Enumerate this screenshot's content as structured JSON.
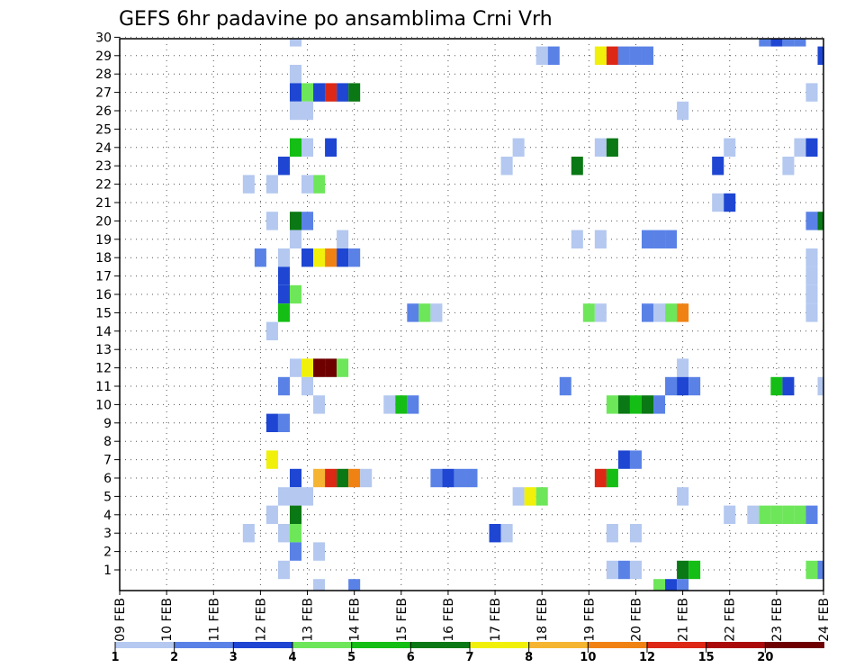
{
  "chart_data": {
    "type": "heatmap",
    "title": "GEFS 6hr padavine po ansamblima Crni Vrh",
    "xlabel": "",
    "ylabel": "",
    "x_tick_labels": [
      "09 FEB",
      "10 FEB",
      "11 FEB",
      "12 FEB",
      "13 FEB",
      "14 FEB",
      "15 FEB",
      "16 FEB",
      "17 FEB",
      "18 FEB",
      "19 FEB",
      "20 FEB",
      "21 FEB",
      "22 FEB",
      "23 FEB",
      "24 FEB"
    ],
    "y_tick_labels": [
      "1",
      "2",
      "3",
      "4",
      "5",
      "6",
      "7",
      "8",
      "9",
      "10",
      "11",
      "12",
      "13",
      "14",
      "15",
      "16",
      "17",
      "18",
      "19",
      "20",
      "21",
      "22",
      "23",
      "24",
      "25",
      "26",
      "27",
      "28",
      "29",
      "30"
    ],
    "xlim_days": [
      0,
      15
    ],
    "ylim_members": [
      0,
      30
    ],
    "grid": true,
    "colorbar": {
      "labels": [
        "1",
        "2",
        "3",
        "4",
        "5",
        "6",
        "7",
        "8",
        "10",
        "12",
        "15",
        "20"
      ],
      "colors": [
        "#b4c8f0",
        "#5a82e6",
        "#1e46d2",
        "#6ee65a",
        "#14be14",
        "#0a7814",
        "#f0f00a",
        "#f5b432",
        "#f08214",
        "#dc2814",
        "#aa0a0a",
        "#6e0000"
      ]
    },
    "cells": [
      [
        3.75,
        30,
        1
      ],
      [
        13.75,
        30,
        2
      ],
      [
        14,
        30,
        3
      ],
      [
        14.25,
        30,
        2
      ],
      [
        14.5,
        30,
        2
      ],
      [
        9.0,
        29,
        1
      ],
      [
        9.25,
        29,
        2
      ],
      [
        10.25,
        29,
        7
      ],
      [
        10.5,
        29,
        10
      ],
      [
        10.75,
        29,
        2
      ],
      [
        11.0,
        29,
        2
      ],
      [
        11.25,
        29,
        2
      ],
      [
        15.0,
        29,
        3
      ],
      [
        3.75,
        28,
        1
      ],
      [
        3.75,
        27,
        3
      ],
      [
        4.0,
        27,
        4
      ],
      [
        4.25,
        27,
        3
      ],
      [
        4.5,
        27,
        10
      ],
      [
        4.75,
        27,
        3
      ],
      [
        5.0,
        27,
        6
      ],
      [
        14.75,
        27,
        1
      ],
      [
        3.75,
        26,
        1
      ],
      [
        4.0,
        26,
        1
      ],
      [
        12.0,
        26,
        1
      ],
      [
        3.75,
        24,
        5
      ],
      [
        4.0,
        24,
        1
      ],
      [
        4.5,
        24,
        3
      ],
      [
        8.5,
        24,
        1
      ],
      [
        10.25,
        24,
        1
      ],
      [
        10.5,
        24,
        6
      ],
      [
        13.0,
        24,
        1
      ],
      [
        14.5,
        24,
        1
      ],
      [
        14.75,
        24,
        3
      ],
      [
        3.5,
        23,
        3
      ],
      [
        8.25,
        23,
        1
      ],
      [
        9.75,
        23,
        6
      ],
      [
        12.75,
        23,
        3
      ],
      [
        14.25,
        23,
        1
      ],
      [
        2.75,
        22,
        1
      ],
      [
        3.25,
        22,
        1
      ],
      [
        4.0,
        22,
        1
      ],
      [
        4.25,
        22,
        4
      ],
      [
        12.75,
        21,
        1
      ],
      [
        13.0,
        21,
        3
      ],
      [
        3.25,
        20,
        1
      ],
      [
        3.75,
        20,
        6
      ],
      [
        4.0,
        20,
        2
      ],
      [
        14.75,
        20,
        2
      ],
      [
        15.0,
        20,
        6
      ],
      [
        3.75,
        19,
        1
      ],
      [
        4.75,
        19,
        1
      ],
      [
        9.75,
        19,
        1
      ],
      [
        10.25,
        19,
        1
      ],
      [
        11.25,
        19,
        2
      ],
      [
        11.5,
        19,
        2
      ],
      [
        11.75,
        19,
        2
      ],
      [
        3.0,
        18,
        2
      ],
      [
        3.5,
        18,
        1
      ],
      [
        4.0,
        18,
        3
      ],
      [
        4.25,
        18,
        7
      ],
      [
        4.5,
        18,
        9
      ],
      [
        4.75,
        18,
        3
      ],
      [
        5.0,
        18,
        2
      ],
      [
        14.75,
        18,
        1
      ],
      [
        3.5,
        17,
        3
      ],
      [
        14.75,
        17,
        1
      ],
      [
        3.5,
        16,
        3
      ],
      [
        3.75,
        16,
        4
      ],
      [
        14.75,
        16,
        1
      ],
      [
        3.5,
        15,
        5
      ],
      [
        6.25,
        15,
        2
      ],
      [
        6.5,
        15,
        4
      ],
      [
        6.75,
        15,
        1
      ],
      [
        10.0,
        15,
        4
      ],
      [
        10.25,
        15,
        1
      ],
      [
        11.25,
        15,
        2
      ],
      [
        11.5,
        15,
        1
      ],
      [
        11.75,
        15,
        4
      ],
      [
        12.0,
        15,
        9
      ],
      [
        14.75,
        15,
        1
      ],
      [
        3.25,
        14,
        1
      ],
      [
        3.75,
        12,
        1
      ],
      [
        4.0,
        12,
        7
      ],
      [
        4.25,
        12,
        12
      ],
      [
        4.5,
        12,
        12
      ],
      [
        4.75,
        12,
        4
      ],
      [
        12.0,
        12,
        1
      ],
      [
        3.5,
        11,
        2
      ],
      [
        4.0,
        11,
        1
      ],
      [
        9.5,
        11,
        2
      ],
      [
        11.75,
        11,
        2
      ],
      [
        12.0,
        11,
        3
      ],
      [
        12.25,
        11,
        2
      ],
      [
        14.0,
        11,
        5
      ],
      [
        14.25,
        11,
        3
      ],
      [
        15.0,
        11,
        1
      ],
      [
        4.25,
        10,
        1
      ],
      [
        5.75,
        10,
        1
      ],
      [
        6.0,
        10,
        5
      ],
      [
        6.25,
        10,
        2
      ],
      [
        10.5,
        10,
        4
      ],
      [
        10.75,
        10,
        6
      ],
      [
        11.0,
        10,
        5
      ],
      [
        11.25,
        10,
        6
      ],
      [
        11.5,
        10,
        2
      ],
      [
        3.25,
        9,
        3
      ],
      [
        3.5,
        9,
        2
      ],
      [
        10.75,
        7,
        3
      ],
      [
        11.0,
        7,
        2
      ],
      [
        3.25,
        7,
        7
      ],
      [
        3.75,
        6,
        3
      ],
      [
        4.25,
        6,
        8
      ],
      [
        4.5,
        6,
        10
      ],
      [
        4.75,
        6,
        6
      ],
      [
        5.0,
        6,
        9
      ],
      [
        5.25,
        6,
        1
      ],
      [
        6.75,
        6,
        2
      ],
      [
        7.0,
        6,
        3
      ],
      [
        7.25,
        6,
        2
      ],
      [
        7.5,
        6,
        2
      ],
      [
        10.25,
        6,
        10
      ],
      [
        10.5,
        6,
        5
      ],
      [
        3.5,
        5,
        1
      ],
      [
        3.75,
        5,
        1
      ],
      [
        4.0,
        5,
        1
      ],
      [
        8.5,
        5,
        1
      ],
      [
        8.75,
        5,
        7
      ],
      [
        9.0,
        5,
        4
      ],
      [
        12.0,
        5,
        1
      ],
      [
        3.25,
        4,
        1
      ],
      [
        3.75,
        4,
        6
      ],
      [
        13.0,
        4,
        1
      ],
      [
        13.5,
        4,
        1
      ],
      [
        13.75,
        4,
        4
      ],
      [
        14.0,
        4,
        4
      ],
      [
        14.25,
        4,
        4
      ],
      [
        14.5,
        4,
        4
      ],
      [
        14.75,
        4,
        2
      ],
      [
        2.75,
        3,
        1
      ],
      [
        3.5,
        3,
        1
      ],
      [
        3.75,
        3,
        4
      ],
      [
        8.0,
        3,
        3
      ],
      [
        8.25,
        3,
        1
      ],
      [
        10.5,
        3,
        1
      ],
      [
        11.0,
        3,
        1
      ],
      [
        3.75,
        2,
        2
      ],
      [
        4.25,
        2,
        1
      ],
      [
        3.5,
        1,
        1
      ],
      [
        10.5,
        1,
        1
      ],
      [
        10.75,
        1,
        2
      ],
      [
        11.0,
        1,
        1
      ],
      [
        12.0,
        1,
        6
      ],
      [
        12.25,
        1,
        5
      ],
      [
        14.75,
        1,
        4
      ],
      [
        15.0,
        1,
        2
      ],
      [
        4.25,
        0,
        1
      ],
      [
        5.0,
        0,
        2
      ],
      [
        11.5,
        0,
        4
      ],
      [
        11.75,
        0,
        3
      ],
      [
        12.0,
        0,
        2
      ]
    ]
  }
}
